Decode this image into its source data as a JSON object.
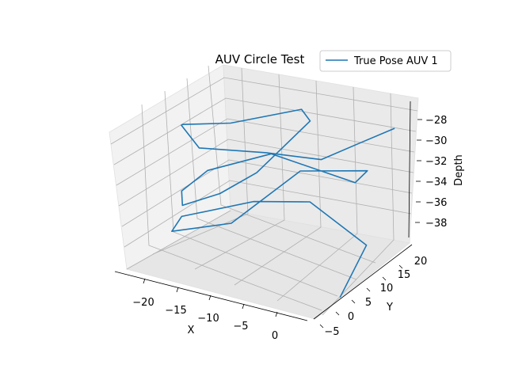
{
  "chart_data": {
    "type": "line",
    "projection": "3d",
    "title": "AUV Circle Test",
    "xlabel": "X",
    "ylabel": "Y",
    "zlabel": "Depth",
    "x_ticks": [
      "−20",
      "−15",
      "−10",
      "−5",
      "0"
    ],
    "y_ticks": [
      "−5",
      "0",
      "5",
      "10",
      "15",
      "20"
    ],
    "z_ticks": [
      "−28",
      "−30",
      "−32",
      "−34",
      "−36",
      "−38"
    ],
    "legend": {
      "position": "top-right",
      "entries": [
        "True Pose AUV 1"
      ]
    },
    "grid": true,
    "series": [
      {
        "name": "True Pose AUV 1",
        "color": "#1f77b4",
        "points": [
          {
            "x": 1.5,
            "y": -3.0,
            "depth": -38.5
          },
          {
            "x": -1.5,
            "y": 12.0,
            "depth": -38.8
          },
          {
            "x": -9.0,
            "y": 13.0,
            "depth": -36.5
          },
          {
            "x": -14.0,
            "y": 8.0,
            "depth": -36.0
          },
          {
            "x": -21.0,
            "y": 3.0,
            "depth": -37.5
          },
          {
            "x": -22.5,
            "y": 3.5,
            "depth": -39.5
          },
          {
            "x": -16.0,
            "y": 6.0,
            "depth": -38.0
          },
          {
            "x": -11.0,
            "y": 15.0,
            "depth": -34.5
          },
          {
            "x": -4.0,
            "y": 18.5,
            "depth": -34.0
          },
          {
            "x": -4.5,
            "y": 16.0,
            "depth": -34.5
          },
          {
            "x": -12.5,
            "y": 10.0,
            "depth": -31.5
          },
          {
            "x": -18.0,
            "y": 4.0,
            "depth": -32.5
          },
          {
            "x": -20.5,
            "y": 2.0,
            "depth": -34.5
          },
          {
            "x": -20.0,
            "y": 1.0,
            "depth": -35.5
          },
          {
            "x": -15.0,
            "y": 0.5,
            "depth": -33.0
          },
          {
            "x": -12.0,
            "y": 4.5,
            "depth": -31.5
          },
          {
            "x": -11.0,
            "y": 13.0,
            "depth": -30.5
          },
          {
            "x": -10.5,
            "y": 17.0,
            "depth": -30.0
          },
          {
            "x": -12.0,
            "y": 18.0,
            "depth": -29.5
          },
          {
            "x": -18.0,
            "y": 11.0,
            "depth": -30.0
          },
          {
            "x": -21.5,
            "y": 5.0,
            "depth": -29.0
          },
          {
            "x": -19.5,
            "y": 0.0,
            "depth": -27.0
          },
          {
            "x": -16.0,
            "y": -3.0,
            "depth": -27.5
          },
          {
            "x": -9.0,
            "y": 0.5,
            "depth": -27.5
          },
          {
            "x": -4.0,
            "y": 5.0,
            "depth": -28.5
          },
          {
            "x": -3.5,
            "y": 15.0,
            "depth": -30.0
          },
          {
            "x": 1.5,
            "y": 14.0,
            "depth": -27.0
          }
        ]
      }
    ]
  }
}
